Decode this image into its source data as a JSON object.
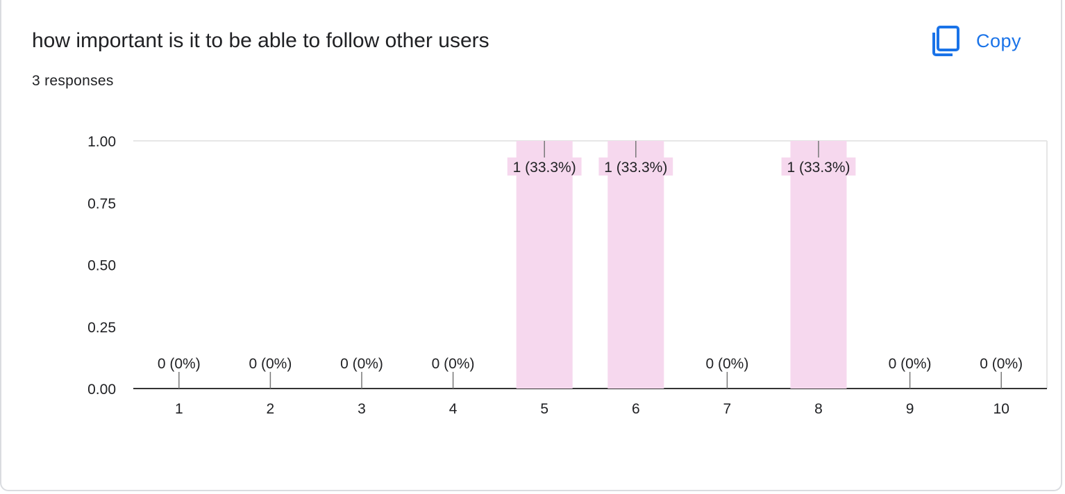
{
  "card": {
    "title": "how important is it to be able to follow other users",
    "responses": "3 responses",
    "copy_label": "Copy"
  },
  "colors": {
    "bar": "#f6d8ee",
    "accent": "#1a73e8",
    "text": "#202124",
    "axis": "#333333",
    "grid": "#e6e6e6"
  },
  "icons": {
    "copy": "copy-icon"
  },
  "chart_data": {
    "type": "bar",
    "title": "",
    "xlabel": "",
    "ylabel": "",
    "categories": [
      "1",
      "2",
      "3",
      "4",
      "5",
      "6",
      "7",
      "8",
      "9",
      "10"
    ],
    "values": [
      0,
      0,
      0,
      0,
      1,
      1,
      0,
      1,
      0,
      0
    ],
    "data_labels": [
      "0 (0%)",
      "0 (0%)",
      "0 (0%)",
      "0 (0%)",
      "1 (33.3%)",
      "1 (33.3%)",
      "0 (0%)",
      "1 (33.3%)",
      "0 (0%)",
      "0 (0%)"
    ],
    "ylim": [
      0,
      1
    ],
    "yticks": [
      "0.00",
      "0.25",
      "0.50",
      "0.75",
      "1.00"
    ],
    "grid": false,
    "legend": "none"
  }
}
